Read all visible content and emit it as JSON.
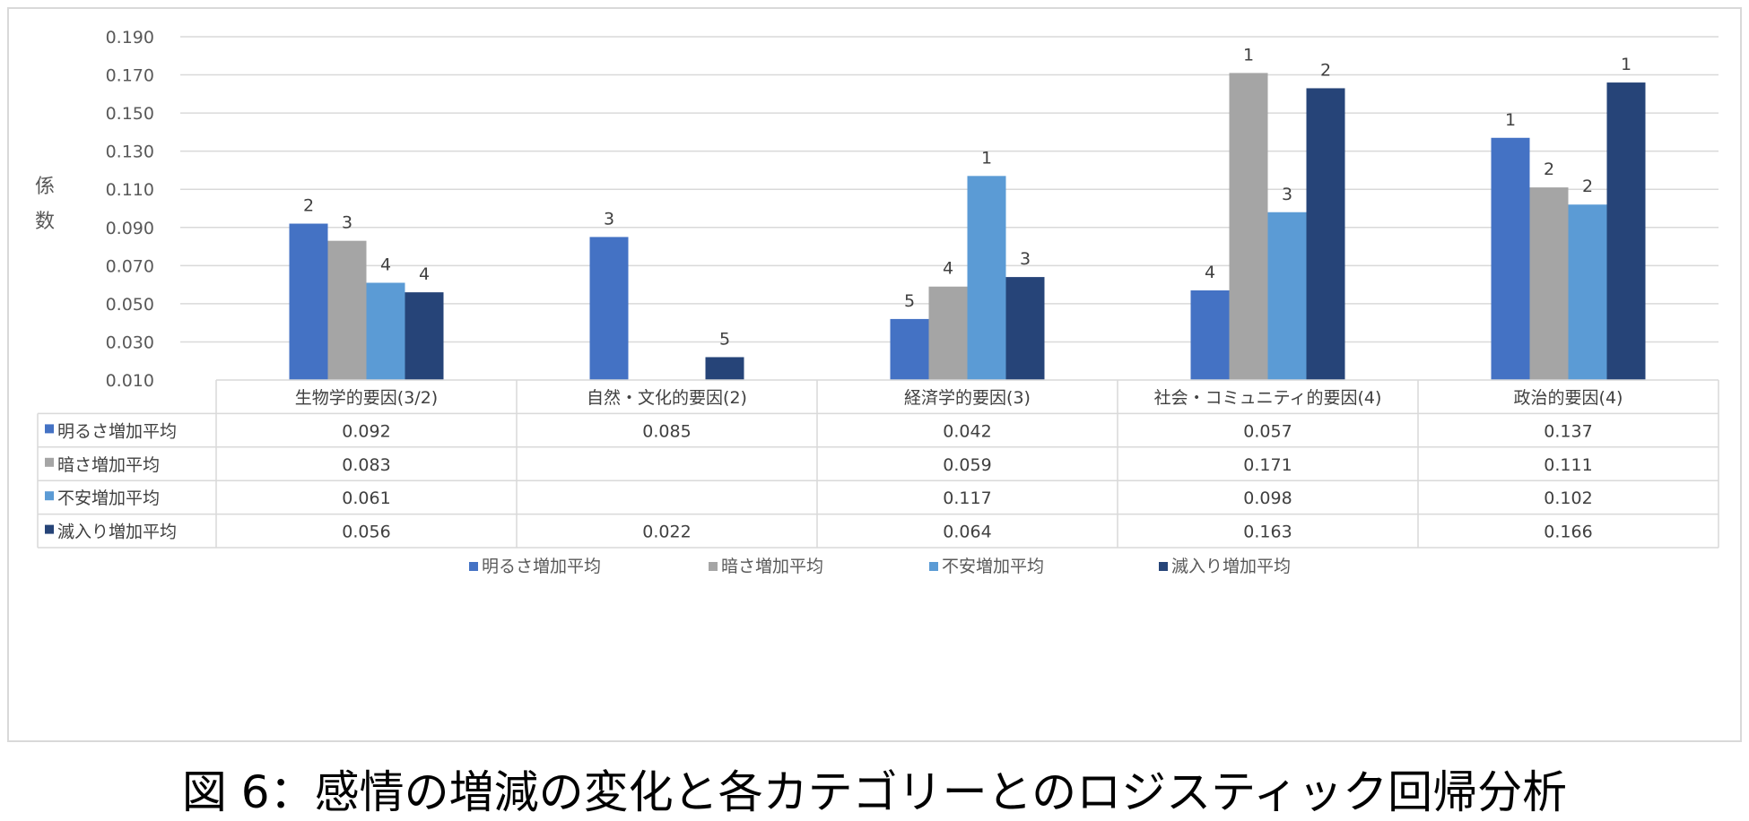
{
  "figure_caption": "図 6：感情の増減の変化と各カテゴリーとのロジスティック回帰分析",
  "chart_data": {
    "type": "bar",
    "ylabel_chars": [
      "係",
      "数"
    ],
    "ylim": [
      0.01,
      0.19
    ],
    "yticks": [
      "0.010",
      "0.030",
      "0.050",
      "0.070",
      "0.090",
      "0.110",
      "0.130",
      "0.150",
      "0.170",
      "0.190"
    ],
    "grid": true,
    "legend_position": "bottom",
    "categories": [
      "生物学的要因(3/2)",
      "自然・文化的要因(2)",
      "経済学的要因(3)",
      "社会・コミュニティ的要因(4)",
      "政治的要因(4)"
    ],
    "series": [
      {
        "name": "明るさ増加平均",
        "color": "#4472c4",
        "values": [
          0.092,
          0.085,
          0.042,
          0.057,
          0.137
        ],
        "table_values": [
          "0.092",
          "0.085",
          "0.042",
          "0.057",
          "0.137"
        ],
        "ranks": [
          "2",
          "3",
          "5",
          "4",
          "1"
        ]
      },
      {
        "name": "暗さ増加平均",
        "color": "#a5a5a5",
        "values": [
          0.083,
          null,
          0.059,
          0.171,
          0.111
        ],
        "table_values": [
          "0.083",
          "",
          "0.059",
          "0.171",
          "0.111"
        ],
        "ranks": [
          "3",
          "",
          "4",
          "1",
          "2"
        ]
      },
      {
        "name": "不安増加平均",
        "color": "#5b9bd5",
        "values": [
          0.061,
          null,
          0.117,
          0.098,
          0.102
        ],
        "table_values": [
          "0.061",
          "",
          "0.117",
          "0.098",
          "0.102"
        ],
        "ranks": [
          "4",
          "",
          "1",
          "3",
          "2"
        ]
      },
      {
        "name": "滅入り増加平均",
        "color": "#264478",
        "values": [
          0.056,
          0.022,
          0.064,
          0.163,
          0.166
        ],
        "table_values": [
          "0.056",
          "0.022",
          "0.064",
          "0.163",
          "0.166"
        ],
        "ranks": [
          "4",
          "5",
          "3",
          "2",
          "1"
        ]
      }
    ]
  }
}
